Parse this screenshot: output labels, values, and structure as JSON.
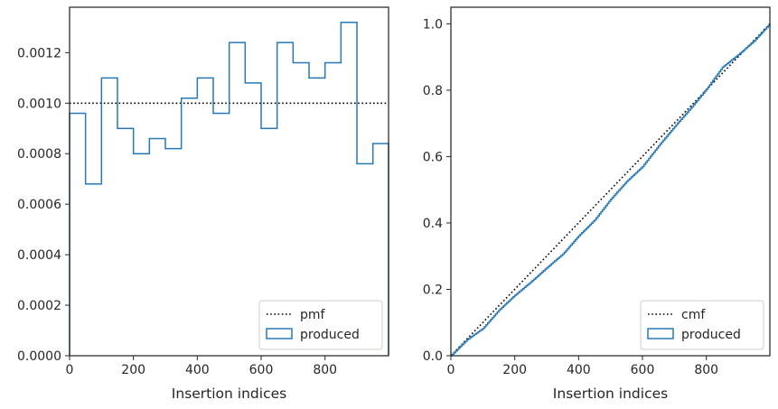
{
  "colors": {
    "produced": "#2878b5",
    "reference": "#000000",
    "axis": "#262626"
  },
  "chart_data": [
    {
      "type": "line",
      "subtype": "step-histogram",
      "title": "",
      "xlabel": "Insertion indices",
      "ylabel": "",
      "xlim": [
        0,
        999
      ],
      "ylim": [
        0,
        0.00138
      ],
      "xticks": [
        0,
        200,
        400,
        600,
        800
      ],
      "xtick_labels": [
        "0",
        "200",
        "400",
        "600",
        "800"
      ],
      "yticks": [
        0,
        0.0002,
        0.0004,
        0.0006,
        0.0008,
        0.001,
        0.0012
      ],
      "ytick_labels": [
        "0.0000",
        "0.0002",
        "0.0004",
        "0.0006",
        "0.0008",
        "0.0010",
        "0.0012"
      ],
      "grid": false,
      "legend": {
        "position": "lower right",
        "entries": [
          {
            "label": "pmf",
            "style": "dotted-line"
          },
          {
            "label": "produced",
            "style": "outlined-box"
          }
        ]
      },
      "reference_line": {
        "name": "pmf",
        "y": 0.001
      },
      "series": [
        {
          "name": "produced",
          "bin_edges": [
            0,
            50,
            100,
            150,
            200,
            250,
            300,
            350,
            400,
            450,
            500,
            550,
            600,
            650,
            700,
            750,
            800,
            850,
            900,
            950,
            999
          ],
          "values": [
            0.00096,
            0.00068,
            0.0011,
            0.0009,
            0.0008,
            0.00086,
            0.00082,
            0.00102,
            0.0011,
            0.00096,
            0.00124,
            0.00108,
            0.0009,
            0.00124,
            0.00116,
            0.0011,
            0.00116,
            0.00132,
            0.00076,
            0.00084
          ]
        }
      ]
    },
    {
      "type": "line",
      "title": "",
      "xlabel": "Insertion indices",
      "ylabel": "",
      "xlim": [
        0,
        999
      ],
      "ylim": [
        0,
        1.05
      ],
      "xticks": [
        0,
        200,
        400,
        600,
        800
      ],
      "xtick_labels": [
        "0",
        "200",
        "400",
        "600",
        "800"
      ],
      "yticks": [
        0,
        0.2,
        0.4,
        0.6,
        0.8,
        1.0
      ],
      "ytick_labels": [
        "0.0",
        "0.2",
        "0.4",
        "0.6",
        "0.8",
        "1.0"
      ],
      "grid": false,
      "legend": {
        "position": "lower right",
        "entries": [
          {
            "label": "cmf",
            "style": "dotted-line"
          },
          {
            "label": "produced",
            "style": "outlined-box"
          }
        ]
      },
      "reference_line": {
        "name": "cmf",
        "x": [
          0,
          999
        ],
        "y": [
          0,
          1.0
        ]
      },
      "series": [
        {
          "name": "produced",
          "x": [
            0,
            50,
            100,
            150,
            200,
            250,
            300,
            350,
            400,
            450,
            500,
            550,
            600,
            650,
            700,
            750,
            800,
            850,
            900,
            950,
            999
          ],
          "y": [
            0.0,
            0.048,
            0.082,
            0.137,
            0.182,
            0.222,
            0.265,
            0.306,
            0.361,
            0.409,
            0.471,
            0.525,
            0.57,
            0.632,
            0.69,
            0.745,
            0.803,
            0.869,
            0.907,
            0.949,
            1.0
          ]
        }
      ]
    }
  ]
}
